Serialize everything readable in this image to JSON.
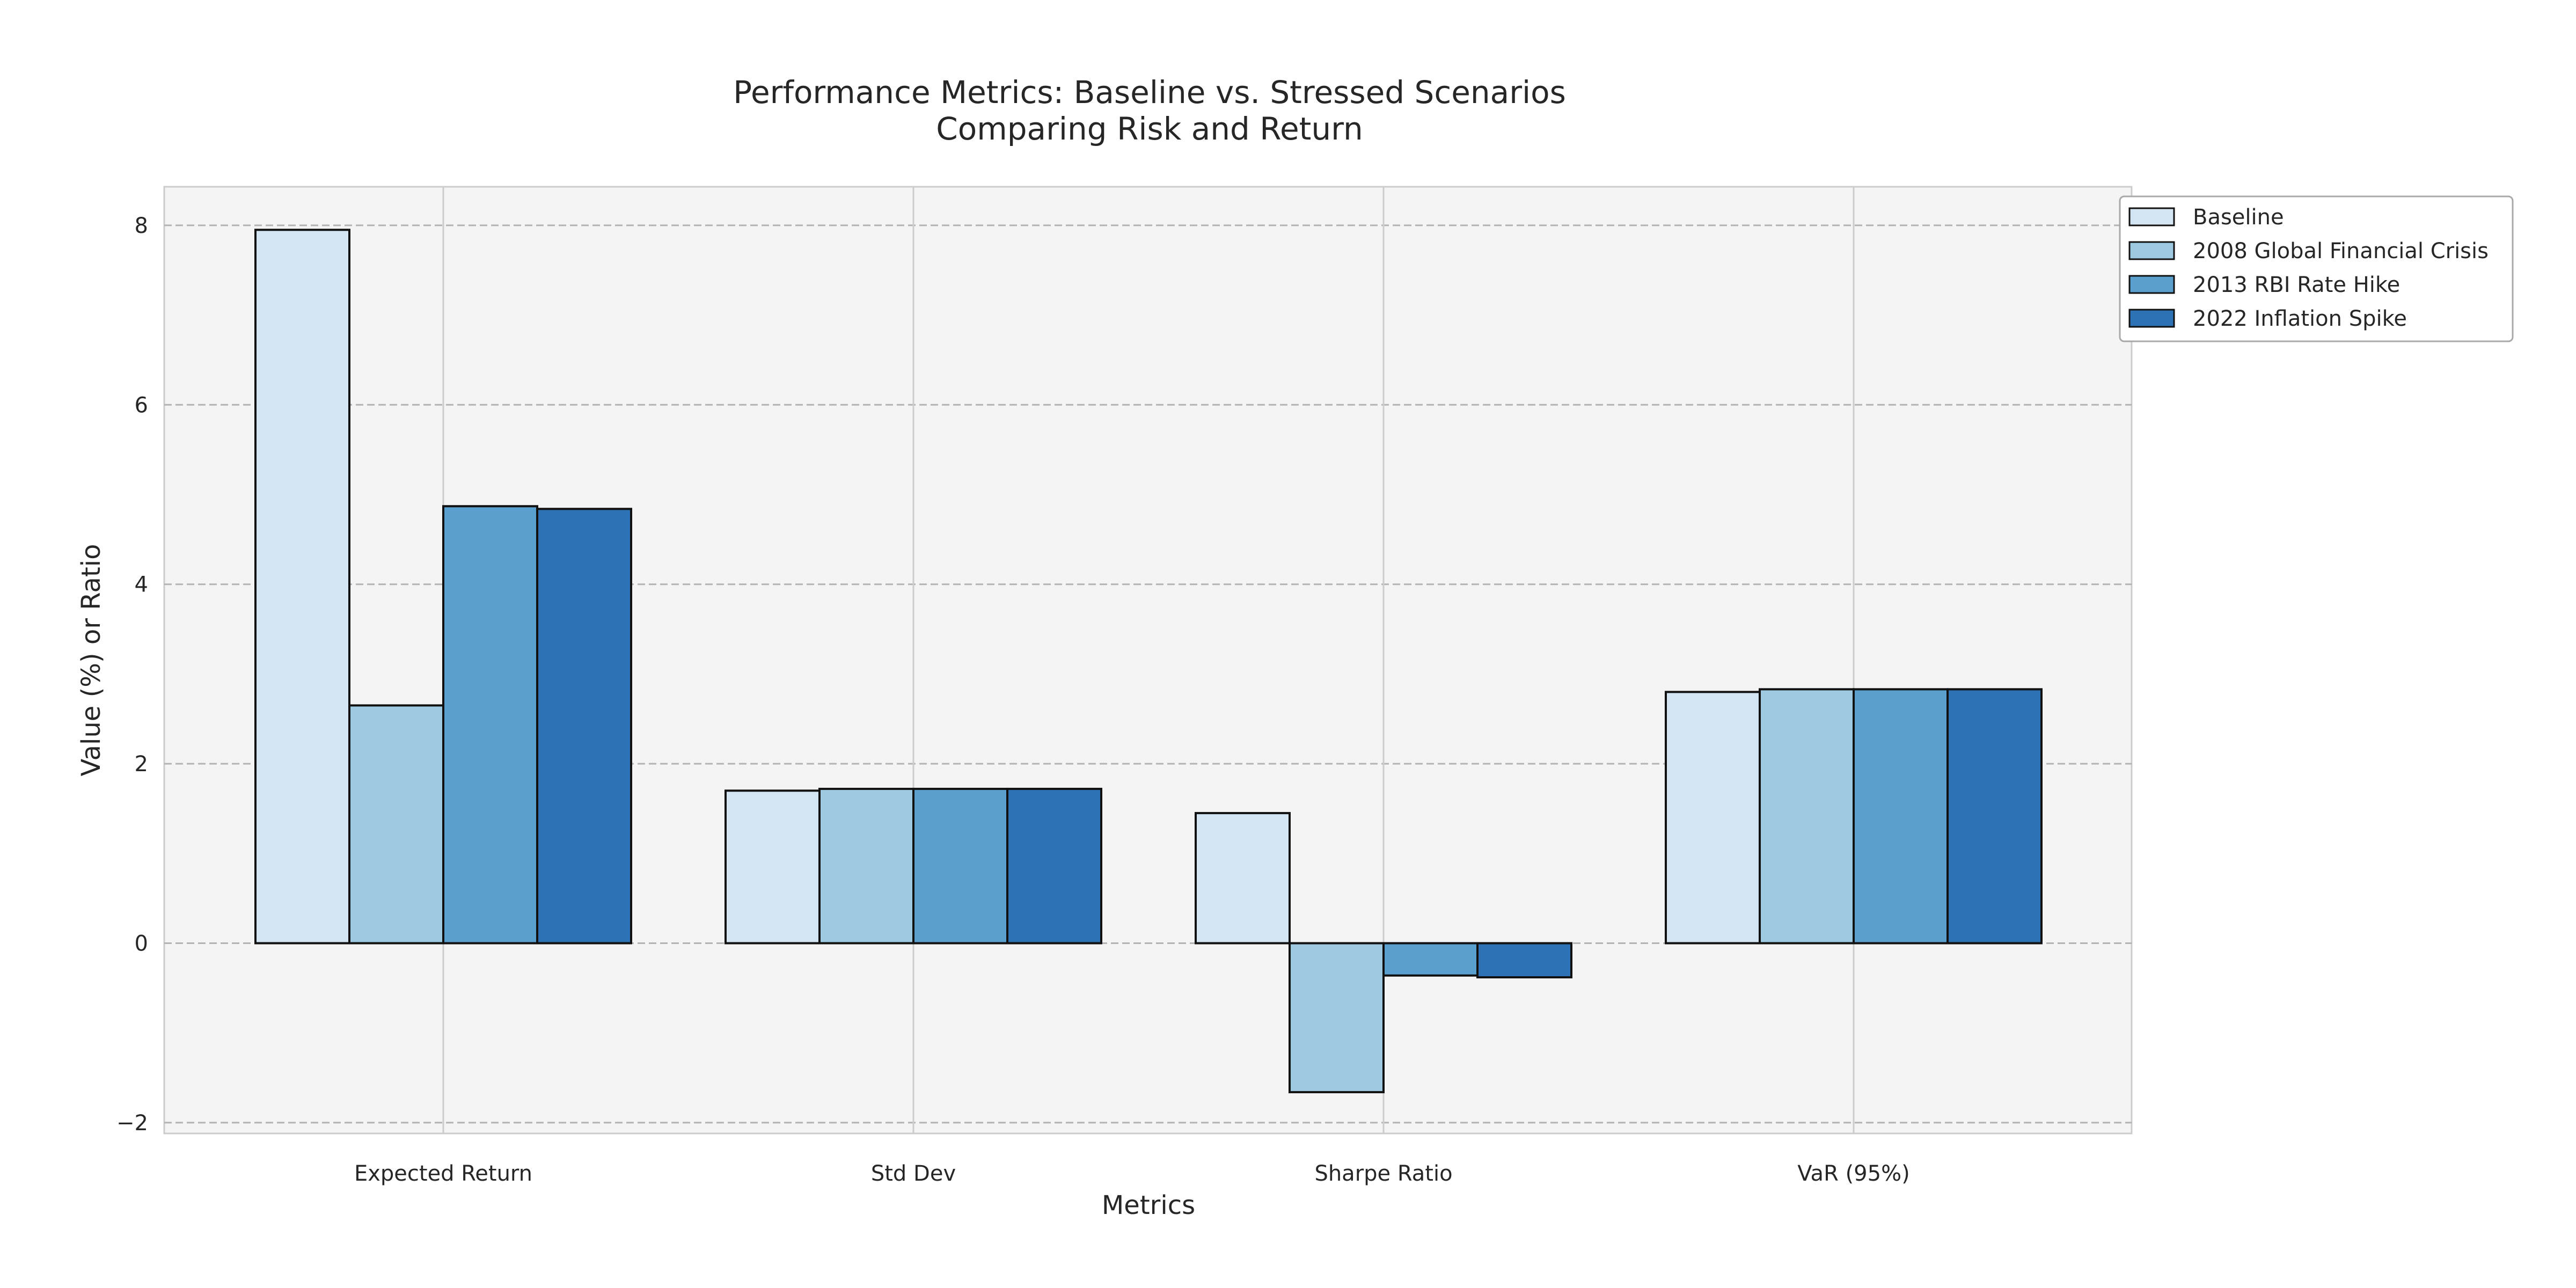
{
  "chart_data": {
    "type": "bar",
    "title": "Performance Metrics: Baseline vs. Stressed Scenarios",
    "subtitle": "Comparing Risk and Return",
    "xlabel": "Metrics",
    "ylabel": "Value (%) or Ratio",
    "categories": [
      "Expected Return",
      "Std Dev",
      "Sharpe Ratio",
      "VaR (95%)"
    ],
    "series": [
      {
        "name": "Baseline",
        "color": "#d3e4f3",
        "values": [
          7.95,
          1.7,
          1.45,
          2.8
        ]
      },
      {
        "name": "2008 Global Financial Crisis",
        "color": "#9ecae1",
        "values": [
          2.65,
          1.72,
          -1.66,
          2.83
        ]
      },
      {
        "name": "2013 RBI Rate Hike",
        "color": "#5aa0cf",
        "values": [
          4.87,
          1.72,
          -0.36,
          2.83
        ]
      },
      {
        "name": "2022 Inflation Spike",
        "color": "#2d72b4",
        "values": [
          4.84,
          1.72,
          -0.38,
          2.83
        ]
      }
    ],
    "ylim": [
      -2.12,
      8.43
    ],
    "yticks": [
      -2,
      0,
      2,
      4,
      6,
      8
    ],
    "ytick_labels": [
      "−2",
      "0",
      "2",
      "4",
      "6",
      "8"
    ],
    "grid": true,
    "legend_position": "upper-right-outside",
    "plot_background": "#f4f4f4",
    "bar_edge_color": "#111111"
  }
}
